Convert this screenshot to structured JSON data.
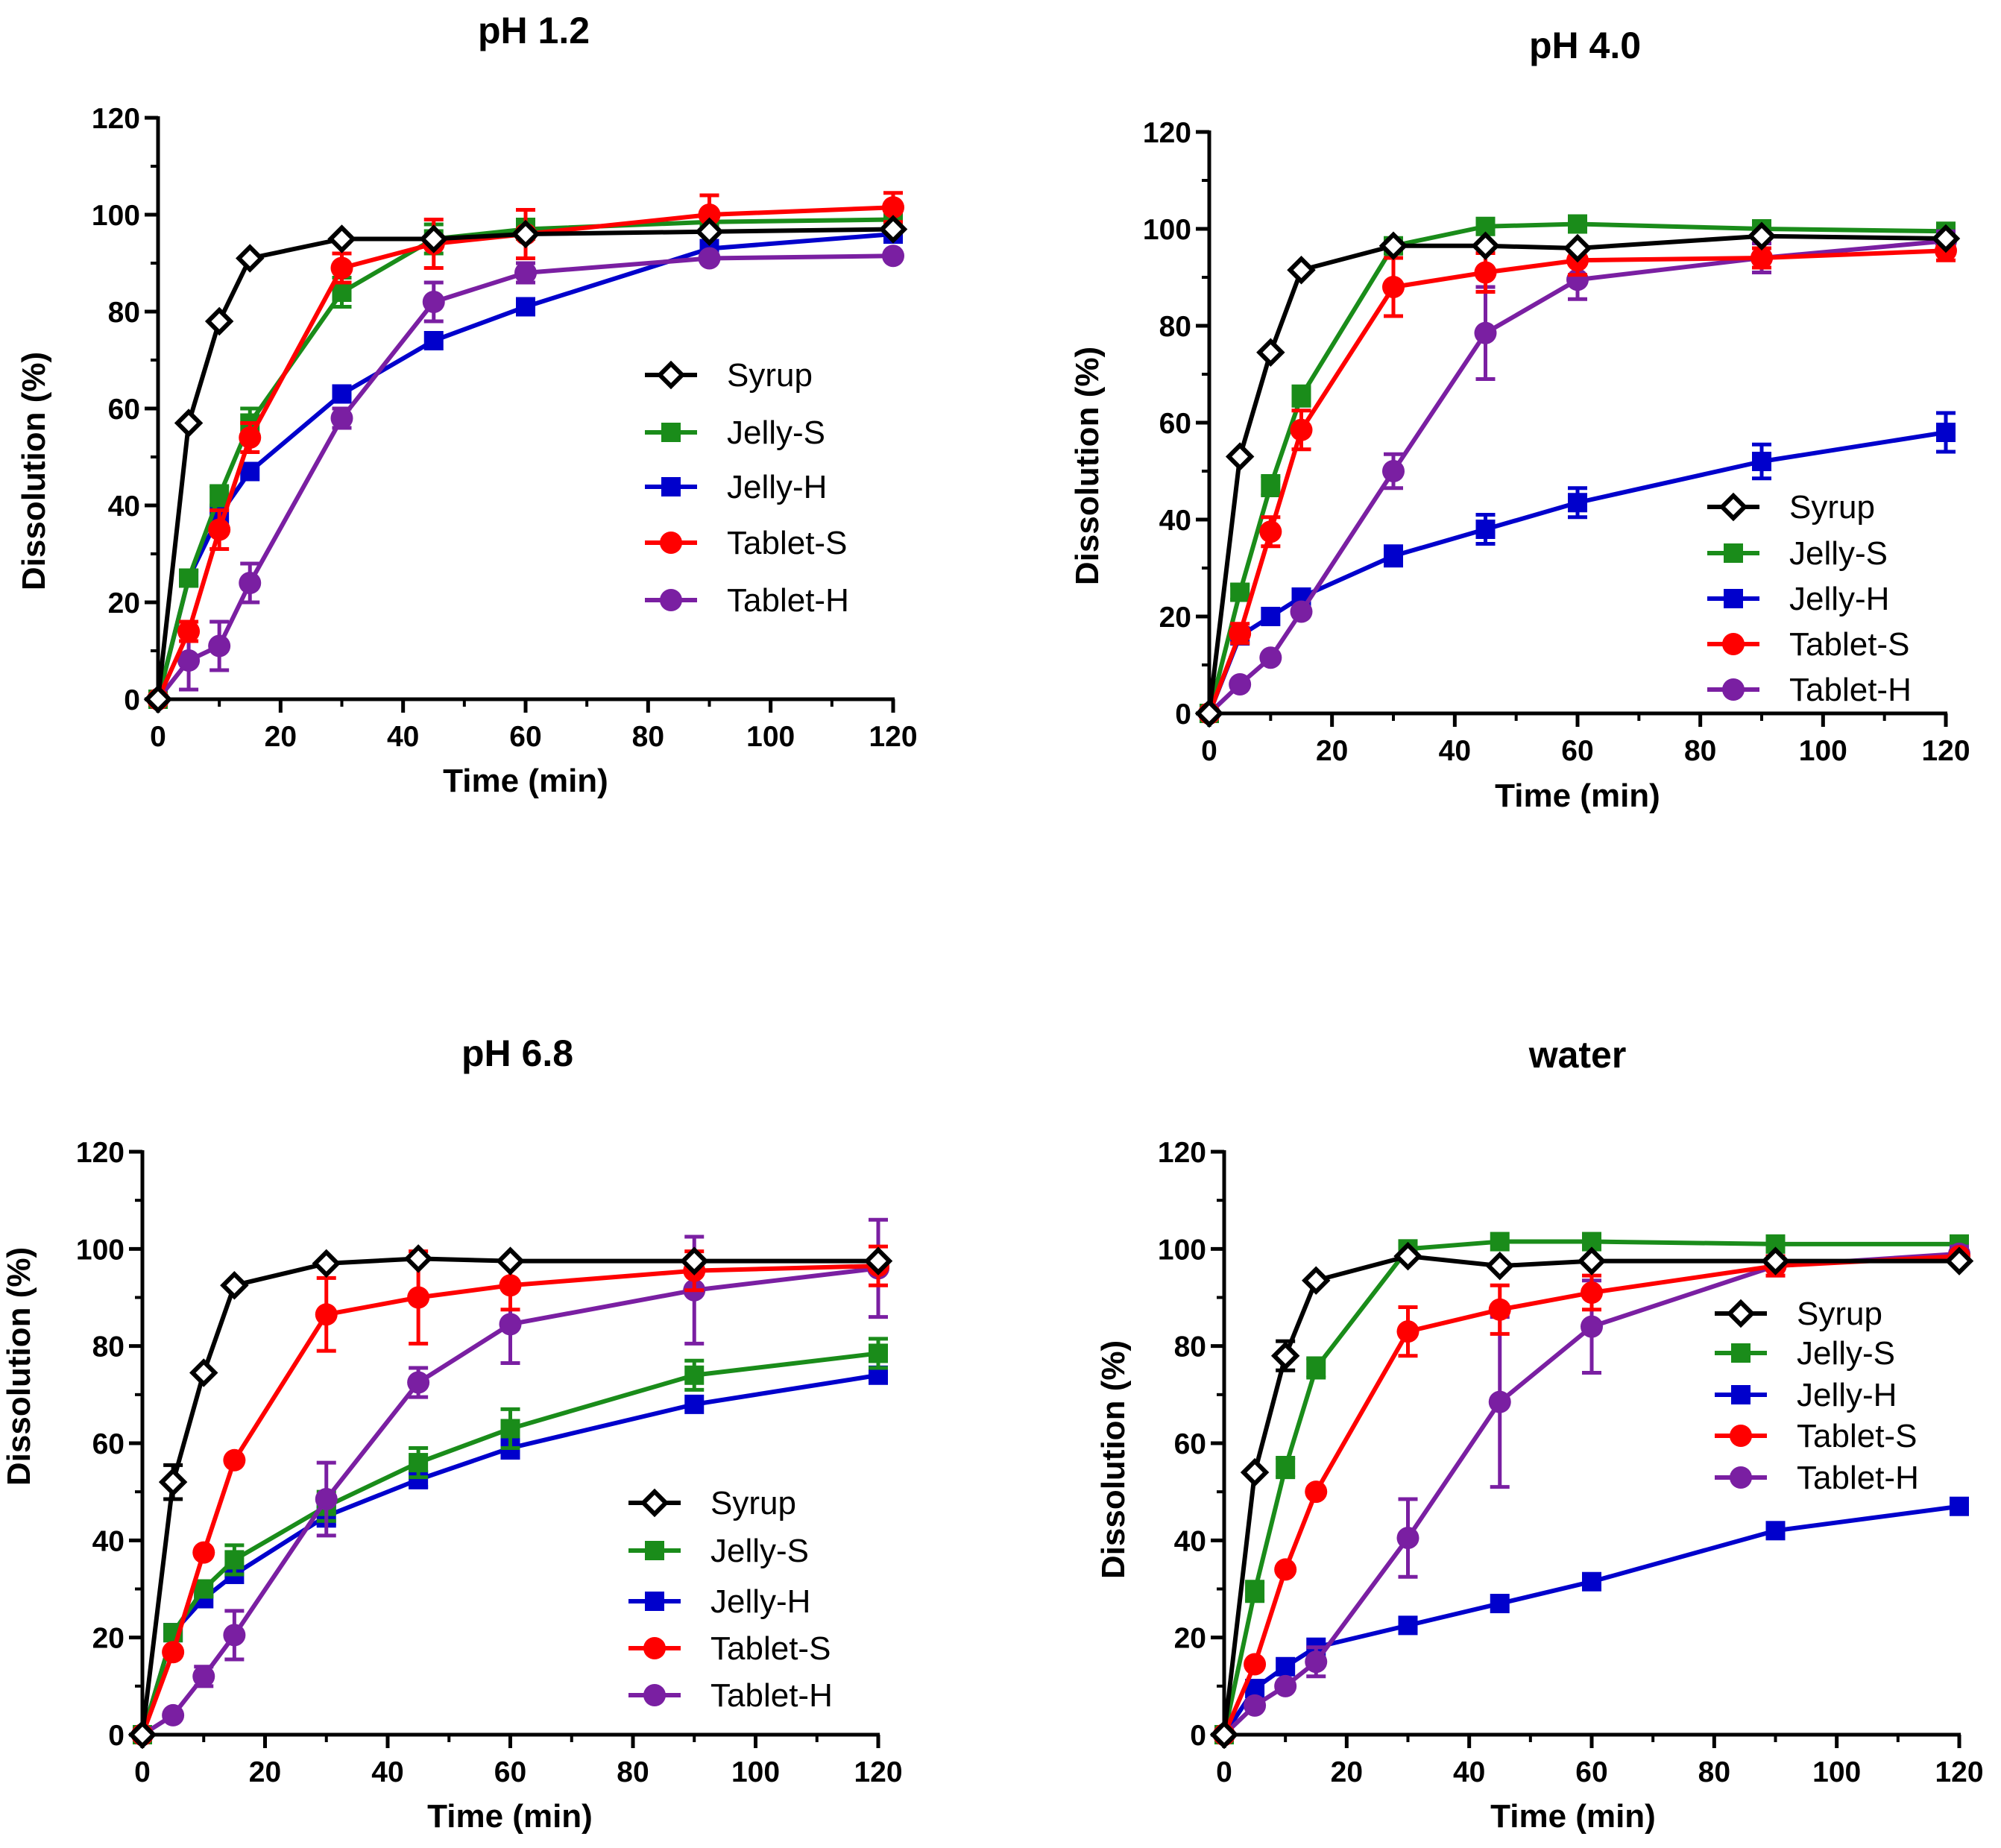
{
  "colors": {
    "Syrup": "#000000",
    "Jelly-S": "#1a8c1a",
    "Jelly-H": "#0000cc",
    "Tablet-S": "#ff0000",
    "Tablet-H": "#7a1fa2"
  },
  "markers": {
    "Syrup": "diamond-open",
    "Jelly-S": "square",
    "Jelly-H": "square",
    "Tablet-S": "circle",
    "Tablet-H": "circle"
  },
  "chart_data": [
    {
      "type": "line",
      "title": "pH 1.2",
      "xlabel": "Time (min)",
      "ylabel": "Dissolution (%)",
      "xlim": [
        0,
        120
      ],
      "ylim": [
        0,
        120
      ],
      "xticks": [
        0,
        20,
        40,
        60,
        80,
        100,
        120
      ],
      "yticks": [
        0,
        20,
        40,
        60,
        80,
        100,
        120
      ],
      "x": [
        0,
        5,
        10,
        15,
        30,
        45,
        60,
        90,
        120
      ],
      "legend_position": "center-right",
      "series": [
        {
          "name": "Syrup",
          "values": [
            0,
            57,
            78,
            91,
            95,
            95,
            96,
            96.5,
            97
          ],
          "err": [
            0,
            1,
            1,
            1,
            1,
            1,
            1,
            1,
            1
          ]
        },
        {
          "name": "Jelly-S",
          "values": [
            0,
            25,
            42,
            57,
            84,
            95,
            97,
            98.5,
            99
          ],
          "err": [
            0,
            1.5,
            2,
            3,
            3,
            3,
            2,
            2,
            2
          ]
        },
        {
          "name": "Jelly-H",
          "values": [
            0,
            25,
            38,
            47,
            63,
            74,
            81,
            93,
            96
          ],
          "err": [
            0,
            1,
            1,
            1,
            1,
            1,
            1,
            1,
            1
          ]
        },
        {
          "name": "Tablet-S",
          "values": [
            0,
            14,
            35,
            54,
            89,
            94,
            96,
            100,
            101.5
          ],
          "err": [
            0,
            2,
            4,
            3,
            3,
            5,
            5,
            4,
            3
          ]
        },
        {
          "name": "Tablet-H",
          "values": [
            0,
            8,
            11,
            24,
            58,
            82,
            88,
            91,
            91.5
          ],
          "err": [
            0,
            6,
            5,
            4,
            2,
            4,
            2,
            1,
            1
          ]
        }
      ]
    },
    {
      "type": "line",
      "title": "pH 4.0",
      "xlabel": "Time (min)",
      "ylabel": "Dissolution (%)",
      "xlim": [
        0,
        120
      ],
      "ylim": [
        0,
        120
      ],
      "xticks": [
        0,
        20,
        40,
        60,
        80,
        100,
        120
      ],
      "yticks": [
        0,
        20,
        40,
        60,
        80,
        100,
        120
      ],
      "x": [
        0,
        5,
        10,
        15,
        30,
        45,
        60,
        90,
        120
      ],
      "legend_position": "bottom-right",
      "series": [
        {
          "name": "Syrup",
          "values": [
            0,
            53,
            74.5,
            91.5,
            96.5,
            96.5,
            96,
            98.5,
            98
          ],
          "err": [
            0,
            1,
            1,
            1,
            1,
            1,
            1,
            1,
            1
          ]
        },
        {
          "name": "Jelly-S",
          "values": [
            0,
            25,
            47,
            65.5,
            96.5,
            100.5,
            101,
            100,
            99.5
          ],
          "err": [
            0,
            1.5,
            2,
            2,
            1.5,
            1,
            1,
            1,
            1
          ]
        },
        {
          "name": "Jelly-H",
          "values": [
            0,
            16,
            20,
            24,
            32.5,
            38,
            43.5,
            52,
            58
          ],
          "err": [
            0,
            1,
            1,
            1,
            2,
            3,
            3,
            3.5,
            4
          ]
        },
        {
          "name": "Tablet-S",
          "values": [
            0,
            16.5,
            37.5,
            58.5,
            88,
            91,
            93.5,
            94,
            95.5
          ],
          "err": [
            0,
            2,
            3,
            4,
            6,
            4,
            3,
            2,
            2
          ]
        },
        {
          "name": "Tablet-H",
          "values": [
            0,
            6,
            11.5,
            21,
            50,
            78.5,
            89.5,
            94,
            97.5
          ],
          "err": [
            0,
            1,
            1,
            1,
            3.5,
            9.5,
            4,
            3,
            2
          ]
        }
      ]
    },
    {
      "type": "line",
      "title": "pH 6.8",
      "xlabel": "Time (min)",
      "ylabel": "Dissolution (%)",
      "xlim": [
        0,
        120
      ],
      "ylim": [
        0,
        120
      ],
      "xticks": [
        0,
        20,
        40,
        60,
        80,
        100,
        120
      ],
      "yticks": [
        0,
        20,
        40,
        60,
        80,
        100,
        120
      ],
      "x": [
        0,
        5,
        10,
        15,
        30,
        45,
        60,
        90,
        120
      ],
      "legend_position": "bottom-right",
      "series": [
        {
          "name": "Syrup",
          "values": [
            0,
            52,
            74.5,
            92.5,
            97,
            98,
            97.5,
            97.5,
            97.5
          ],
          "err": [
            0,
            3.5,
            1,
            1,
            1,
            1,
            1,
            1,
            1
          ]
        },
        {
          "name": "Jelly-S",
          "values": [
            0,
            21,
            30,
            36,
            47,
            56,
            63,
            74,
            78.5
          ],
          "err": [
            0,
            1,
            1.5,
            3,
            3,
            3,
            4,
            3,
            3
          ]
        },
        {
          "name": "Jelly-H",
          "values": [
            0,
            21,
            28,
            33,
            45,
            52.5,
            59,
            68,
            74
          ],
          "err": [
            0,
            1,
            1,
            1,
            2,
            1.5,
            2,
            1,
            1
          ]
        },
        {
          "name": "Tablet-S",
          "values": [
            0,
            17,
            37.5,
            56.5,
            86.5,
            90,
            92.5,
            95.5,
            96.5
          ],
          "err": [
            0,
            1,
            1,
            1,
            7.5,
            9.5,
            5,
            4,
            4
          ]
        },
        {
          "name": "Tablet-H",
          "values": [
            0,
            4,
            12,
            20.5,
            48.5,
            72.5,
            84.5,
            91.5,
            96
          ],
          "err": [
            0,
            1,
            2,
            5,
            7.5,
            3,
            8,
            11,
            10
          ]
        }
      ]
    },
    {
      "type": "line",
      "title": "water",
      "xlabel": "Time (min)",
      "ylabel": "Dissolution (%)",
      "xlim": [
        0,
        120
      ],
      "ylim": [
        0,
        120
      ],
      "xticks": [
        0,
        20,
        40,
        60,
        80,
        100,
        120
      ],
      "yticks": [
        0,
        20,
        40,
        60,
        80,
        100,
        120
      ],
      "x": [
        0,
        5,
        10,
        15,
        30,
        45,
        60,
        90,
        120
      ],
      "legend_position": "center-right",
      "series": [
        {
          "name": "Syrup",
          "values": [
            0,
            54,
            78,
            93.5,
            98.5,
            96.5,
            97.5,
            97.5,
            97.5
          ],
          "err": [
            0,
            1,
            3,
            1,
            1,
            1,
            1,
            1,
            1
          ]
        },
        {
          "name": "Jelly-S",
          "values": [
            0,
            29.5,
            55,
            75.5,
            100,
            101.5,
            101.5,
            101,
            101
          ],
          "err": [
            0,
            2,
            2,
            2,
            1.5,
            1,
            1,
            1,
            1
          ]
        },
        {
          "name": "Jelly-H",
          "values": [
            0,
            9.5,
            14,
            18,
            22.5,
            27,
            31.5,
            42,
            47
          ],
          "err": [
            0,
            1,
            1,
            1,
            1,
            1,
            1,
            1,
            1.5
          ]
        },
        {
          "name": "Tablet-S",
          "values": [
            0,
            14.5,
            34,
            50,
            83,
            87.5,
            91,
            96.5,
            98.5
          ],
          "err": [
            0,
            1,
            1,
            1,
            5,
            5,
            3.5,
            2,
            1
          ]
        },
        {
          "name": "Tablet-H",
          "values": [
            0,
            6,
            10,
            15,
            40.5,
            68.5,
            84,
            96.5,
            99
          ],
          "err": [
            0,
            1,
            1,
            3,
            8,
            17.5,
            9.5,
            2,
            1.5
          ]
        }
      ]
    }
  ]
}
